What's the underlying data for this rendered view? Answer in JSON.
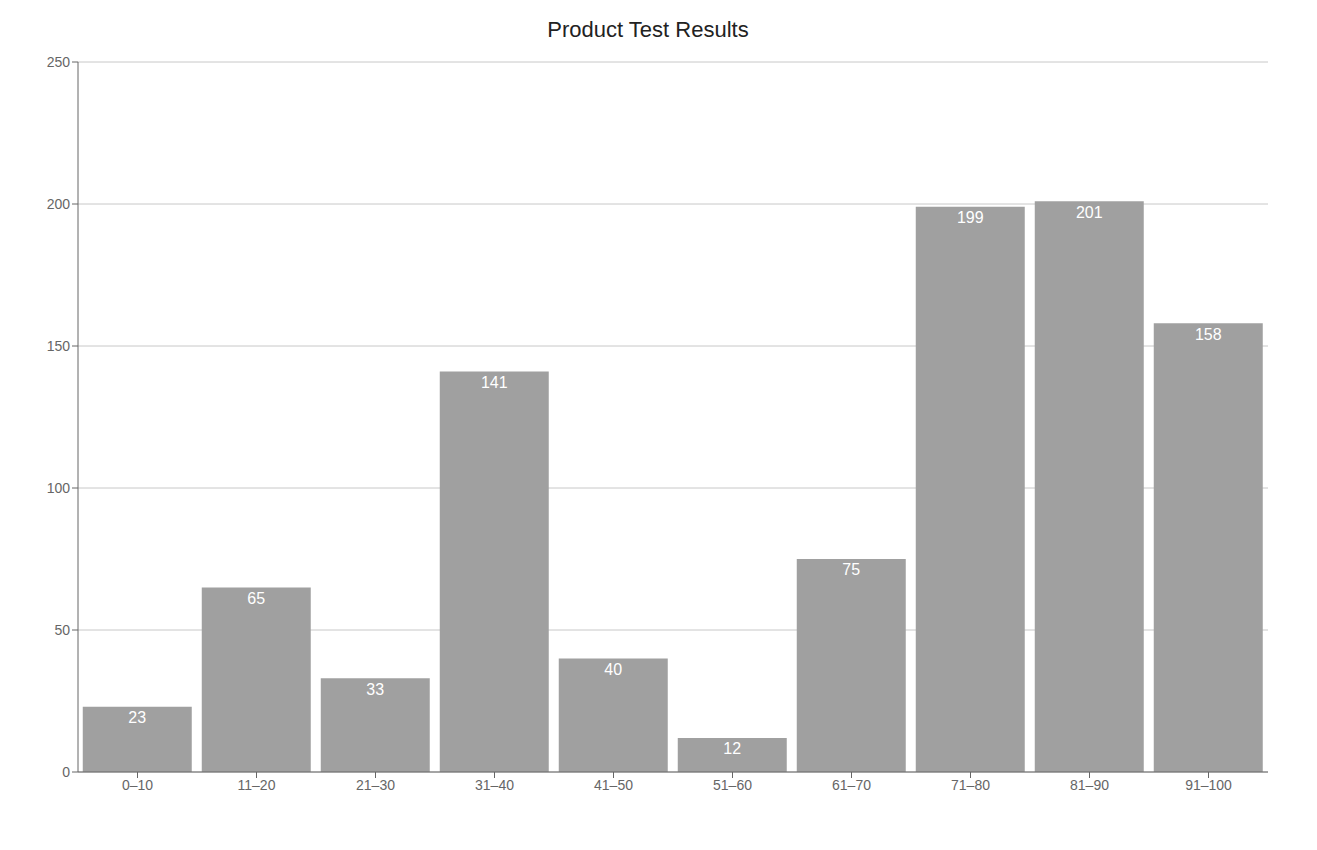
{
  "chart_data": {
    "type": "bar",
    "title": "Product Test Results",
    "categories": [
      "0–10",
      "11–20",
      "21–30",
      "31–40",
      "41–50",
      "51–60",
      "61–70",
      "71–80",
      "81–90",
      "91–100"
    ],
    "values": [
      23,
      65,
      33,
      141,
      40,
      12,
      75,
      199,
      201,
      158
    ],
    "color": "#a0a0a0",
    "ylim": [
      0,
      250
    ],
    "yticks": [
      0,
      50,
      100,
      150,
      200,
      250
    ],
    "grid": true,
    "data_labels": true
  }
}
